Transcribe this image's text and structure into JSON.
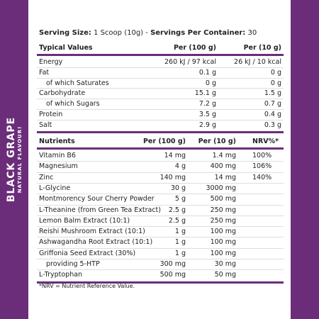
{
  "side": {
    "title": "BLACK GRAPE",
    "subtitle": "NATURAL FLAVOUR!"
  },
  "serving": {
    "size_label": "Serving Size:",
    "size": "1 Scoop (10g)",
    "separator": "-",
    "servings_label": "Servings Per Container:",
    "servings": "30"
  },
  "table1": {
    "headers": [
      "Typical Values",
      "Per (100 g)",
      "Per (10 g)"
    ],
    "rows": [
      [
        "Energy",
        "260 kJ / 97 kcal",
        "26 kJ / 10 kcal"
      ],
      [
        "Fat",
        "0.1 g",
        "0 g"
      ],
      [
        "of which Saturates",
        "0 g",
        "0 g"
      ],
      [
        "Carbohydrate",
        "15.1 g",
        "1.5 g"
      ],
      [
        "of which Sugars",
        "7.2 g",
        "0.7 g"
      ],
      [
        "Protein",
        "3.5 g",
        "0.4 g"
      ],
      [
        "Salt",
        "2.9 g",
        "0.3 g"
      ]
    ]
  },
  "table2": {
    "headers": [
      "Nutrients",
      "Per (100 g)",
      "Per (10 g)",
      "NRV%*"
    ],
    "rows": [
      [
        "Vitamin B6",
        "14 mg",
        "1.4 mg",
        "100%"
      ],
      [
        "Magnesium",
        "4 g",
        "400 mg",
        "106%"
      ],
      [
        "Zinc",
        "140 mg",
        "14 mg",
        "140%"
      ],
      [
        "L-Glycine",
        "30 g",
        "3000 mg"
      ],
      [
        "Montmorency Sour Cherry Powder",
        "5 g",
        "500 mg"
      ],
      [
        "L-Theanine (from Green Tea Extract)",
        "2.5 g",
        "250 mg"
      ],
      [
        "Lemon Balm Extract (10:1)",
        "2.5 g",
        "250 mg"
      ],
      [
        "Reishi Mushroom Extract (10:1)",
        "1 g",
        "100 mg"
      ],
      [
        "Ashwagandha Root Extract (10:1)",
        "1 g",
        "100 mg"
      ],
      [
        "Griffonia Seed Extract (30%)",
        "1 g",
        "100 mg"
      ],
      [
        "providing 5-HTP",
        "300 mg",
        "30 mg"
      ],
      [
        "L-Tryptophan",
        "500 mg",
        "50 mg"
      ]
    ]
  },
  "footnote": "*NRV = Nutrient Reference Value."
}
